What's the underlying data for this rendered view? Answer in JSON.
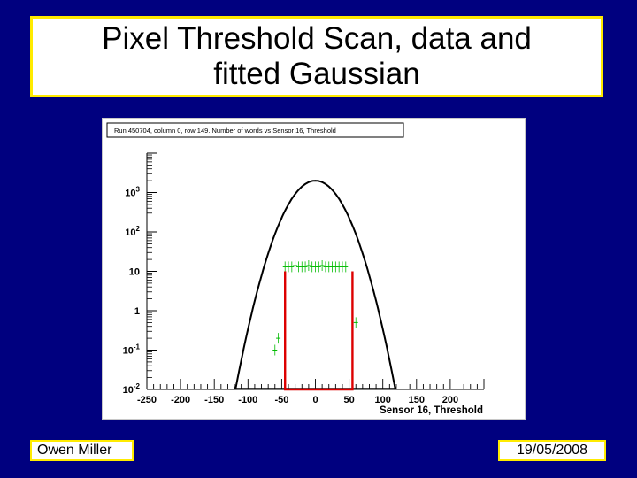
{
  "slide": {
    "title_line1": "Pixel Threshold Scan, data and",
    "title_line2": "fitted Gaussian",
    "author": "Owen Miller",
    "date": "19/05/2008"
  },
  "colors": {
    "background": "#00007f",
    "title_border": "#ffeb00",
    "fit_curve": "#000000",
    "data_series": "#00bb00",
    "region": "#dd0000"
  },
  "chart_data": {
    "type": "line",
    "title": "Run 450704, column 0, row 149. Number of words vs Sensor 16, Threshold",
    "xlabel": "Sensor 16, Threshold",
    "ylabel": "",
    "xlim": [
      -250,
      250
    ],
    "ylim": [
      0.01,
      10000
    ],
    "yscale": "log",
    "x_ticks": [
      {
        "v": -250,
        "label": "-250"
      },
      {
        "v": -200,
        "label": "-200"
      },
      {
        "v": -150,
        "label": "-150"
      },
      {
        "v": -100,
        "label": "-100"
      },
      {
        "v": -50,
        "label": "-50"
      },
      {
        "v": 0,
        "label": "0"
      },
      {
        "v": 50,
        "label": "50"
      },
      {
        "v": 100,
        "label": "100"
      },
      {
        "v": 150,
        "label": "150"
      },
      {
        "v": 200,
        "label": "200"
      }
    ],
    "y_ticks": [
      {
        "v": 0.01,
        "base": "10",
        "exp": "-2"
      },
      {
        "v": 0.1,
        "base": "10",
        "exp": "-1"
      },
      {
        "v": 1,
        "base": "1",
        "exp": ""
      },
      {
        "v": 10,
        "base": "10",
        "exp": ""
      },
      {
        "v": 100,
        "base": "10",
        "exp": "2"
      },
      {
        "v": 1000,
        "base": "10",
        "exp": "3"
      }
    ],
    "series": [
      {
        "kind": "fit",
        "color": "#000000",
        "gaussian": {
          "amplitude": 2000,
          "mean": 0,
          "sigma": 24,
          "cutoff": 0.0105
        }
      },
      {
        "kind": "data",
        "color": "#00bb00",
        "points": [
          {
            "x": -60,
            "y": 0.1
          },
          {
            "x": -55,
            "y": 0.2
          },
          {
            "x": -45,
            "y": 13
          },
          {
            "x": -40,
            "y": 13
          },
          {
            "x": -35,
            "y": 13
          },
          {
            "x": -30,
            "y": 14
          },
          {
            "x": -25,
            "y": 13
          },
          {
            "x": -20,
            "y": 13
          },
          {
            "x": -15,
            "y": 13
          },
          {
            "x": -10,
            "y": 14
          },
          {
            "x": -5,
            "y": 13
          },
          {
            "x": 0,
            "y": 13
          },
          {
            "x": 5,
            "y": 13
          },
          {
            "x": 10,
            "y": 14
          },
          {
            "x": 15,
            "y": 13
          },
          {
            "x": 20,
            "y": 13
          },
          {
            "x": 25,
            "y": 13
          },
          {
            "x": 30,
            "y": 13
          },
          {
            "x": 35,
            "y": 13
          },
          {
            "x": 40,
            "y": 13
          },
          {
            "x": 45,
            "y": 13
          },
          {
            "x": 60,
            "y": 0.5
          }
        ]
      },
      {
        "kind": "region",
        "color": "#dd0000",
        "x0": -45,
        "x1": 55,
        "y": 10
      }
    ],
    "grid": false,
    "legend": "none"
  }
}
